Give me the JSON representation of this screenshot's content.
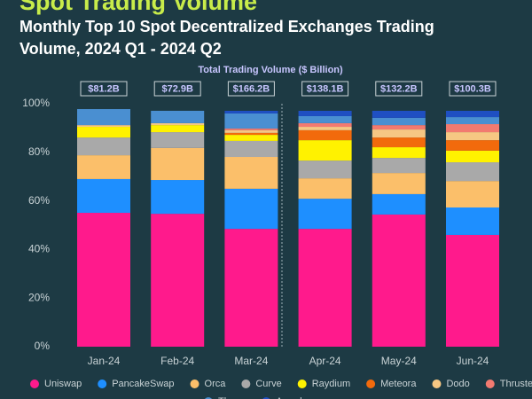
{
  "chart_data": {
    "type": "stacked_bar_percent",
    "title": "Spot Trading Volume",
    "subtitle": [
      "Monthly Top 10 Spot Decentralized Exchanges Trading",
      "Volume, 2024 Q1 - 2024 Q2"
    ],
    "categories": [
      "Jan-24",
      "Feb-24",
      "Mar-24",
      "Apr-24",
      "May-24",
      "Jun-24"
    ],
    "totals": {
      "name": "Total Trading Volume ($ Billion)",
      "values": [
        81.2,
        72.9,
        166.2,
        138.1,
        132.2,
        100.3
      ],
      "value_labels": [
        "$81.2B",
        "$72.9B",
        "$166.2B",
        "$138.1B",
        "$132.2B",
        "$100.3B"
      ]
    },
    "series": [
      {
        "name": "Uniswap",
        "color": "#ff1a8c",
        "values": [
          55.1,
          54.7,
          48.5,
          48.5,
          54.4,
          46.0
        ]
      },
      {
        "name": "PancakeSwap",
        "color": "#1e8fff",
        "values": [
          13.9,
          13.9,
          16.5,
          12.4,
          8.4,
          11.3
        ]
      },
      {
        "name": "Orca",
        "color": "#fbbf6a",
        "values": [
          9.8,
          13.2,
          13.1,
          8.4,
          8.7,
          10.9
        ]
      },
      {
        "name": "Curve",
        "color": "#a9a9a9",
        "values": [
          7.3,
          6.5,
          6.6,
          7.3,
          6.2,
          7.7
        ]
      },
      {
        "name": "Raydium",
        "color": "#fff200",
        "values": [
          4.4,
          2.9,
          2.5,
          8.4,
          4.4,
          4.8
        ]
      },
      {
        "name": "Meteora",
        "color": "#f26a0c",
        "values": [
          0,
          0,
          0.8,
          4.1,
          4.0,
          4.3
        ]
      },
      {
        "name": "Dodo",
        "color": "#f6c783",
        "values": [
          0.7,
          0.8,
          1.1,
          1.4,
          3.3,
          3.3
        ]
      },
      {
        "name": "Thruster",
        "color": "#f27a70",
        "values": [
          0,
          0,
          0.7,
          1.5,
          1.8,
          3.3
        ]
      },
      {
        "name": "Thena",
        "color": "#4a8fd1",
        "values": [
          6.6,
          5.1,
          6.2,
          2.9,
          3.0,
          2.9
        ]
      },
      {
        "name": "Aerodrome",
        "color": "#1f4fc2",
        "values": [
          0,
          0,
          1.1,
          2.2,
          2.9,
          2.6
        ]
      }
    ],
    "ylim": [
      0,
      100
    ],
    "yticks": [
      {
        "value": 0,
        "label": "0%"
      },
      {
        "value": 20,
        "label": "20%"
      },
      {
        "value": 40,
        "label": "40%"
      },
      {
        "value": 60,
        "label": "60%"
      },
      {
        "value": 80,
        "label": "80%"
      },
      {
        "value": 100,
        "label": "100%"
      }
    ],
    "grid": false,
    "legend": "bottom"
  }
}
